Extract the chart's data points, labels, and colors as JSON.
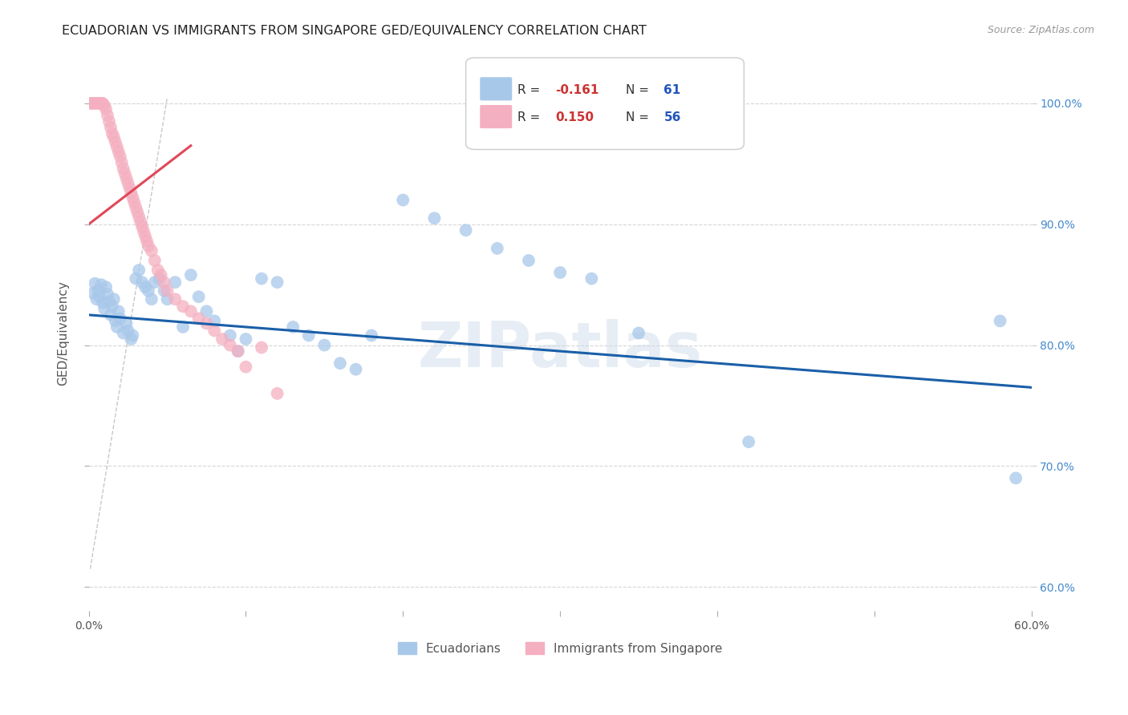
{
  "title": "ECUADORIAN VS IMMIGRANTS FROM SINGAPORE GED/EQUIVALENCY CORRELATION CHART",
  "source": "Source: ZipAtlas.com",
  "ylabel": "GED/Equivalency",
  "x_min": 0.0,
  "x_max": 0.6,
  "y_min": 0.58,
  "y_max": 1.04,
  "x_ticks": [
    0.0,
    0.1,
    0.2,
    0.3,
    0.4,
    0.5,
    0.6
  ],
  "y_ticks": [
    0.6,
    0.7,
    0.8,
    0.9,
    1.0
  ],
  "y_tick_labels": [
    "60.0%",
    "70.0%",
    "80.0%",
    "90.0%",
    "100.0%"
  ],
  "x_tick_labels": [
    "0.0%",
    "",
    "",
    "",
    "",
    "",
    "60.0%"
  ],
  "blue_line_x": [
    0.0,
    0.6
  ],
  "blue_line_y": [
    0.825,
    0.765
  ],
  "pink_line_x": [
    0.0,
    0.065
  ],
  "pink_line_y": [
    0.9,
    0.965
  ],
  "blue_scatter_x": [
    0.003,
    0.004,
    0.005,
    0.006,
    0.007,
    0.008,
    0.009,
    0.01,
    0.011,
    0.012,
    0.013,
    0.014,
    0.015,
    0.016,
    0.017,
    0.018,
    0.019,
    0.02,
    0.022,
    0.024,
    0.025,
    0.027,
    0.028,
    0.03,
    0.032,
    0.034,
    0.036,
    0.038,
    0.04,
    0.042,
    0.045,
    0.048,
    0.05,
    0.055,
    0.06,
    0.065,
    0.07,
    0.075,
    0.08,
    0.09,
    0.095,
    0.1,
    0.11,
    0.12,
    0.13,
    0.14,
    0.15,
    0.16,
    0.17,
    0.18,
    0.2,
    0.22,
    0.24,
    0.26,
    0.28,
    0.3,
    0.32,
    0.35,
    0.58,
    0.59,
    0.42
  ],
  "blue_scatter_y": [
    0.843,
    0.851,
    0.838,
    0.845,
    0.84,
    0.85,
    0.835,
    0.83,
    0.848,
    0.842,
    0.836,
    0.825,
    0.832,
    0.838,
    0.82,
    0.815,
    0.828,
    0.822,
    0.81,
    0.818,
    0.812,
    0.805,
    0.808,
    0.855,
    0.862,
    0.852,
    0.848,
    0.845,
    0.838,
    0.852,
    0.855,
    0.845,
    0.838,
    0.852,
    0.815,
    0.858,
    0.84,
    0.828,
    0.82,
    0.808,
    0.795,
    0.805,
    0.855,
    0.852,
    0.815,
    0.808,
    0.8,
    0.785,
    0.78,
    0.808,
    0.92,
    0.905,
    0.895,
    0.88,
    0.87,
    0.86,
    0.855,
    0.81,
    0.82,
    0.69,
    0.72
  ],
  "pink_scatter_x": [
    0.001,
    0.002,
    0.003,
    0.004,
    0.005,
    0.006,
    0.007,
    0.008,
    0.009,
    0.01,
    0.011,
    0.012,
    0.013,
    0.014,
    0.015,
    0.016,
    0.017,
    0.018,
    0.019,
    0.02,
    0.021,
    0.022,
    0.023,
    0.024,
    0.025,
    0.026,
    0.027,
    0.028,
    0.029,
    0.03,
    0.031,
    0.032,
    0.033,
    0.034,
    0.035,
    0.036,
    0.037,
    0.038,
    0.04,
    0.042,
    0.044,
    0.046,
    0.048,
    0.05,
    0.055,
    0.06,
    0.065,
    0.07,
    0.075,
    0.08,
    0.085,
    0.09,
    0.095,
    0.1,
    0.11,
    0.12
  ],
  "pink_scatter_y": [
    1.0,
    1.0,
    1.0,
    1.0,
    1.0,
    1.0,
    1.0,
    1.0,
    1.0,
    0.998,
    0.995,
    0.99,
    0.985,
    0.98,
    0.975,
    0.972,
    0.968,
    0.964,
    0.96,
    0.956,
    0.951,
    0.946,
    0.942,
    0.938,
    0.934,
    0.93,
    0.926,
    0.922,
    0.918,
    0.914,
    0.91,
    0.906,
    0.902,
    0.898,
    0.894,
    0.89,
    0.886,
    0.882,
    0.878,
    0.87,
    0.862,
    0.858,
    0.852,
    0.845,
    0.838,
    0.832,
    0.828,
    0.822,
    0.818,
    0.812,
    0.805,
    0.8,
    0.795,
    0.782,
    0.798,
    0.76
  ],
  "watermark": "ZIPatlas",
  "blue_color": "#a8c8ea",
  "pink_color": "#f4afc0",
  "blue_line_color": "#1a5fa8",
  "pink_line_color": "#e0485a",
  "diagonal_line_x": [
    0.001,
    0.05
  ],
  "diagonal_line_y": [
    0.615,
    1.005
  ],
  "background_color": "#ffffff",
  "grid_color": "#cccccc"
}
